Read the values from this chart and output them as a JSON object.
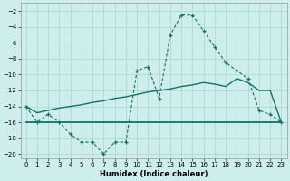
{
  "xlabel": "Humidex (Indice chaleur)",
  "bg_color": "#cdeeed",
  "grid_color": "#aed8d4",
  "line_color": "#1a6e65",
  "xlim": [
    -0.5,
    23.5
  ],
  "ylim": [
    -20.5,
    -1.0
  ],
  "yticks": [
    -2,
    -4,
    -6,
    -8,
    -10,
    -12,
    -14,
    -16,
    -18,
    -20
  ],
  "xticks": [
    0,
    1,
    2,
    3,
    4,
    5,
    6,
    7,
    8,
    9,
    10,
    11,
    12,
    13,
    14,
    15,
    16,
    17,
    18,
    19,
    20,
    21,
    22,
    23
  ],
  "line1_y": [
    -14,
    -16,
    -15,
    -16,
    -17.5,
    -18.5,
    -18.5,
    -20,
    -18.5,
    -18.5,
    -9.5,
    -9,
    -13,
    -5,
    -2.5,
    -2.5,
    -4.5,
    -6.5,
    -8.5,
    -9.5,
    -10.5,
    -14.5,
    -15,
    -16
  ],
  "line2_y": [
    -16,
    -16,
    -16,
    -16,
    -16,
    -16,
    -16,
    -16,
    -16,
    -16,
    -16,
    -16,
    -16,
    -16,
    -16,
    -16,
    -16,
    -16,
    -16,
    -16,
    -16,
    -16,
    -16,
    -16
  ],
  "line3_y": [
    -14,
    -14.8,
    -14.5,
    -14.2,
    -14.0,
    -13.8,
    -13.5,
    -13.3,
    -13.0,
    -12.8,
    -12.5,
    -12.2,
    -12.0,
    -11.8,
    -11.5,
    -11.3,
    -11.0,
    -11.2,
    -11.5,
    -10.5,
    -11.0,
    -12.0,
    -12.0,
    -16
  ]
}
